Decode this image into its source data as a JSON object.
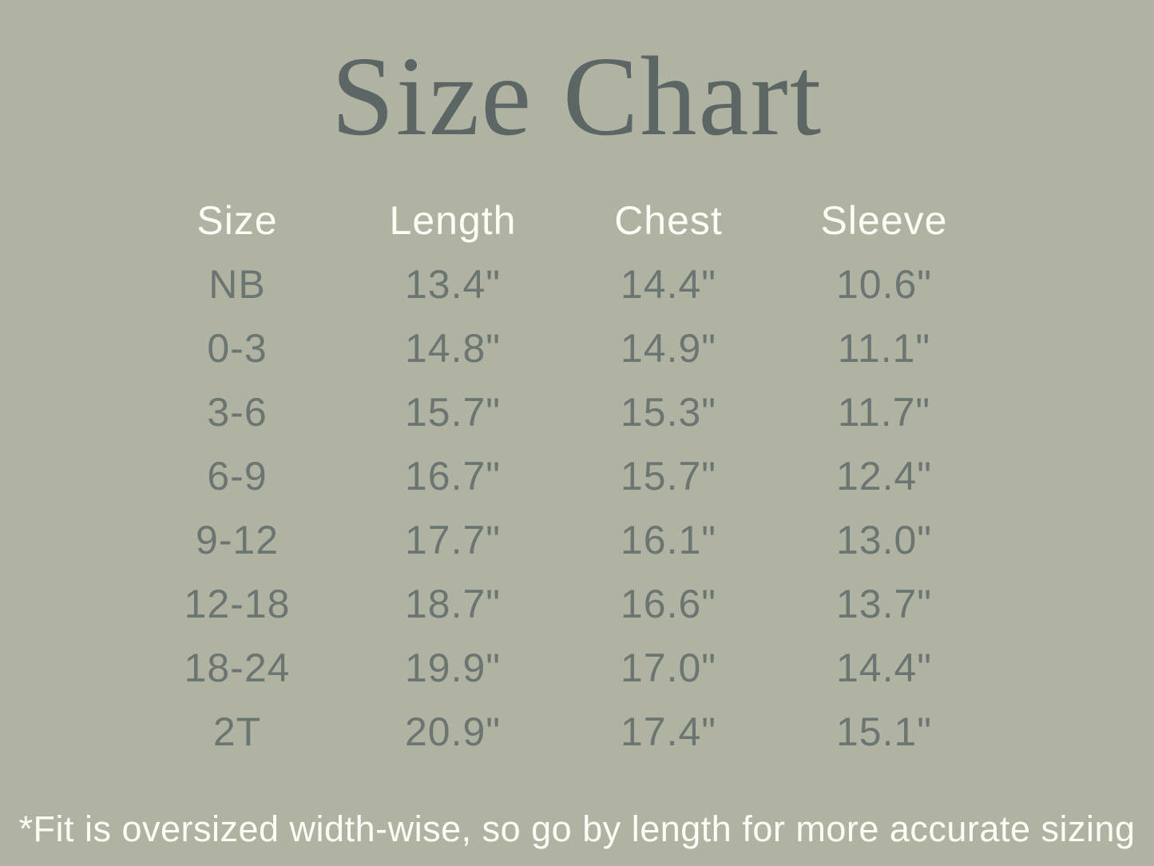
{
  "title": "Size Chart",
  "colors": {
    "background": "#b0b3a2",
    "title_text": "#5b6665",
    "table_values": "#6b7572",
    "headers_and_footnote": "#fcfdf5"
  },
  "chart_data": {
    "type": "table",
    "title": "Size Chart",
    "columns": [
      "Size",
      "Length",
      "Chest",
      "Sleeve"
    ],
    "rows": [
      [
        "NB",
        "13.4\"",
        "14.4\"",
        "10.6\""
      ],
      [
        "0-3",
        "14.8\"",
        "14.9\"",
        "11.1\""
      ],
      [
        "3-6",
        "15.7\"",
        "15.3\"",
        "11.7\""
      ],
      [
        "6-9",
        "16.7\"",
        "15.7\"",
        "12.4\""
      ],
      [
        "9-12",
        "17.7\"",
        "16.1\"",
        "13.0\""
      ],
      [
        "12-18",
        "18.7\"",
        "16.6\"",
        "13.7\""
      ],
      [
        "18-24",
        "19.9\"",
        "17.0\"",
        "14.4\""
      ],
      [
        "2T",
        "20.9\"",
        "17.4\"",
        "15.1\""
      ]
    ],
    "units": "inches",
    "footnote": "*Fit is oversized width-wise, so go by length for more accurate sizing"
  }
}
